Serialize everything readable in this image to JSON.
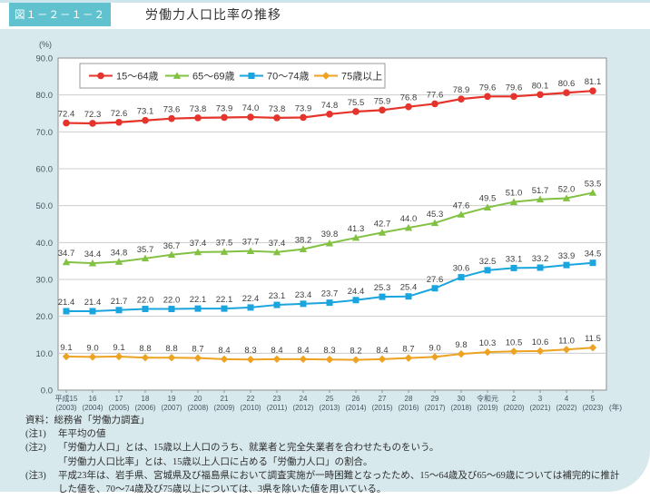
{
  "header": {
    "figure_label": "図１－２－１－２",
    "title": "労働力人口比率の推移"
  },
  "chart_data": {
    "type": "line",
    "title": "労働力人口比率の推移",
    "unit_label": "(%)",
    "x_unit_label": "(年)",
    "ylim": [
      0,
      90
    ],
    "ytick_step": 10,
    "grid": true,
    "legend_position": "top-inside",
    "x_labels_era": [
      "平成15",
      "16",
      "17",
      "18",
      "19",
      "20",
      "21",
      "22",
      "23",
      "24",
      "25",
      "26",
      "27",
      "28",
      "29",
      "30",
      "令和元",
      "2",
      "3",
      "4",
      "5"
    ],
    "x_labels_year": [
      "(2003)",
      "(2004)",
      "(2005)",
      "(2006)",
      "(2007)",
      "(2008)",
      "(2009)",
      "(2010)",
      "(2011)",
      "(2012)",
      "(2013)",
      "(2014)",
      "(2015)",
      "(2016)",
      "(2017)",
      "(2018)",
      "(2019)",
      "(2020)",
      "(2021)",
      "(2022)",
      "(2023)"
    ],
    "series": [
      {
        "name": "15～64歳",
        "color": "#e5342b",
        "marker": "circle",
        "values": [
          72.4,
          72.3,
          72.6,
          73.1,
          73.6,
          73.8,
          73.9,
          74.0,
          73.8,
          73.9,
          74.8,
          75.5,
          75.9,
          76.8,
          77.6,
          78.9,
          79.6,
          79.6,
          80.1,
          80.6,
          81.1
        ]
      },
      {
        "name": "65～69歳",
        "color": "#82c142",
        "marker": "triangle",
        "values": [
          34.7,
          34.4,
          34.8,
          35.7,
          36.7,
          37.4,
          37.5,
          37.7,
          37.4,
          38.2,
          39.8,
          41.3,
          42.7,
          44.0,
          45.3,
          47.6,
          49.5,
          51.0,
          51.7,
          52.0,
          53.5
        ]
      },
      {
        "name": "70～74歳",
        "color": "#1ba5de",
        "marker": "square",
        "values": [
          21.4,
          21.4,
          21.7,
          22.0,
          22.0,
          22.1,
          22.1,
          22.4,
          23.1,
          23.4,
          23.7,
          24.4,
          25.3,
          25.4,
          27.6,
          30.6,
          32.5,
          33.1,
          33.2,
          33.9,
          34.5
        ]
      },
      {
        "name": "75歳以上",
        "color": "#eda321",
        "marker": "diamond",
        "values": [
          9.1,
          9.0,
          9.1,
          8.8,
          8.8,
          8.7,
          8.4,
          8.3,
          8.4,
          8.4,
          8.3,
          8.2,
          8.4,
          8.7,
          9.0,
          9.8,
          10.3,
          10.5,
          10.6,
          11.0,
          11.5
        ]
      }
    ]
  },
  "notes": {
    "source": "資料：総務省「労働力調査」",
    "items": [
      {
        "label": "(注1)",
        "text": "年平均の値"
      },
      {
        "label": "(注2)",
        "text": "「労働力人口」とは、15歳以上人口のうち、就業者と完全失業者を合わせたものをいう。\n「労働力人口比率」とは、15歳以上人口に占める「労働力人口」の割合。"
      },
      {
        "label": "(注3)",
        "text": "平成23年は、岩手県、宮城県及び福島県において調査実施が一時困難となったため、15～64歳及び65～69歳については補完的に推計した値を、70～74歳及び75歳以上については、3県を除いた値を用いている。"
      }
    ]
  },
  "colors": {
    "panel_background": "#d8e9ee",
    "badge_teal": "#60c2cf",
    "plot_border": "#8f8f8f",
    "gridline": "#cccccc",
    "axis_text": "#46545f",
    "data_label_text": "#3d3d3d"
  }
}
